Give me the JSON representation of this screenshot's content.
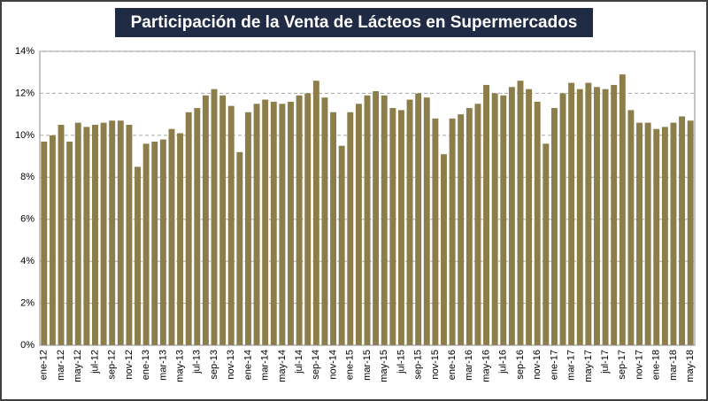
{
  "chart_data": {
    "type": "bar",
    "title": "Participación de la Venta de Lácteos en Supermercados",
    "categories": [
      "ene-12",
      null,
      "mar-12",
      null,
      "may-12",
      null,
      "jul-12",
      null,
      "sep-12",
      null,
      "nov-12",
      null,
      "ene-13",
      null,
      "mar-13",
      null,
      "may-13",
      null,
      "jul-13",
      null,
      "sep-13",
      null,
      "nov-13",
      null,
      "ene-14",
      null,
      "mar-14",
      null,
      "may-14",
      null,
      "jul-14",
      null,
      "sep-14",
      null,
      "nov-14",
      null,
      "ene-15",
      null,
      "mar-15",
      null,
      "may-15",
      null,
      "jul-15",
      null,
      "sep-15",
      null,
      "nov-15",
      null,
      "ene-16",
      null,
      "mar-16",
      null,
      "may-16",
      null,
      "jul-16",
      null,
      "sep-16",
      null,
      "nov-16",
      null,
      "ene-17",
      null,
      "mar-17",
      null,
      "may-17",
      null,
      "jul-17",
      null,
      "sep-17",
      null,
      "nov-17",
      null,
      "ene-18",
      null,
      "mar-18",
      null,
      "may-18"
    ],
    "values": [
      9.7,
      10.0,
      10.5,
      9.7,
      10.6,
      10.4,
      10.5,
      10.6,
      10.7,
      10.7,
      10.5,
      8.5,
      9.6,
      9.7,
      9.8,
      10.3,
      10.1,
      11.1,
      11.3,
      11.9,
      12.2,
      11.9,
      11.4,
      9.2,
      11.1,
      11.5,
      11.7,
      11.6,
      11.5,
      11.6,
      11.9,
      12.0,
      12.6,
      11.8,
      11.1,
      9.5,
      11.1,
      11.5,
      11.9,
      12.1,
      11.9,
      11.3,
      11.2,
      11.7,
      12.0,
      11.8,
      10.8,
      9.1,
      10.8,
      11.0,
      11.3,
      11.5,
      12.4,
      12.0,
      11.9,
      12.3,
      12.6,
      12.2,
      11.6,
      9.6,
      11.3,
      12.0,
      12.5,
      12.2,
      12.5,
      12.3,
      12.2,
      12.4,
      12.9,
      11.2,
      10.6,
      10.6,
      10.3,
      10.4,
      10.6,
      10.9,
      10.7
    ],
    "color": "#8c7e4a",
    "ylim": [
      0,
      14
    ],
    "yticks": [
      {
        "value": 0,
        "label": "0%"
      },
      {
        "value": 2,
        "label": "2%"
      },
      {
        "value": 4,
        "label": "4%"
      },
      {
        "value": 6,
        "label": "6%"
      },
      {
        "value": 8,
        "label": "8%"
      },
      {
        "value": 10,
        "label": "10%"
      },
      {
        "value": 12,
        "label": "12%"
      },
      {
        "value": 14,
        "label": "14%"
      }
    ],
    "grid": true
  }
}
